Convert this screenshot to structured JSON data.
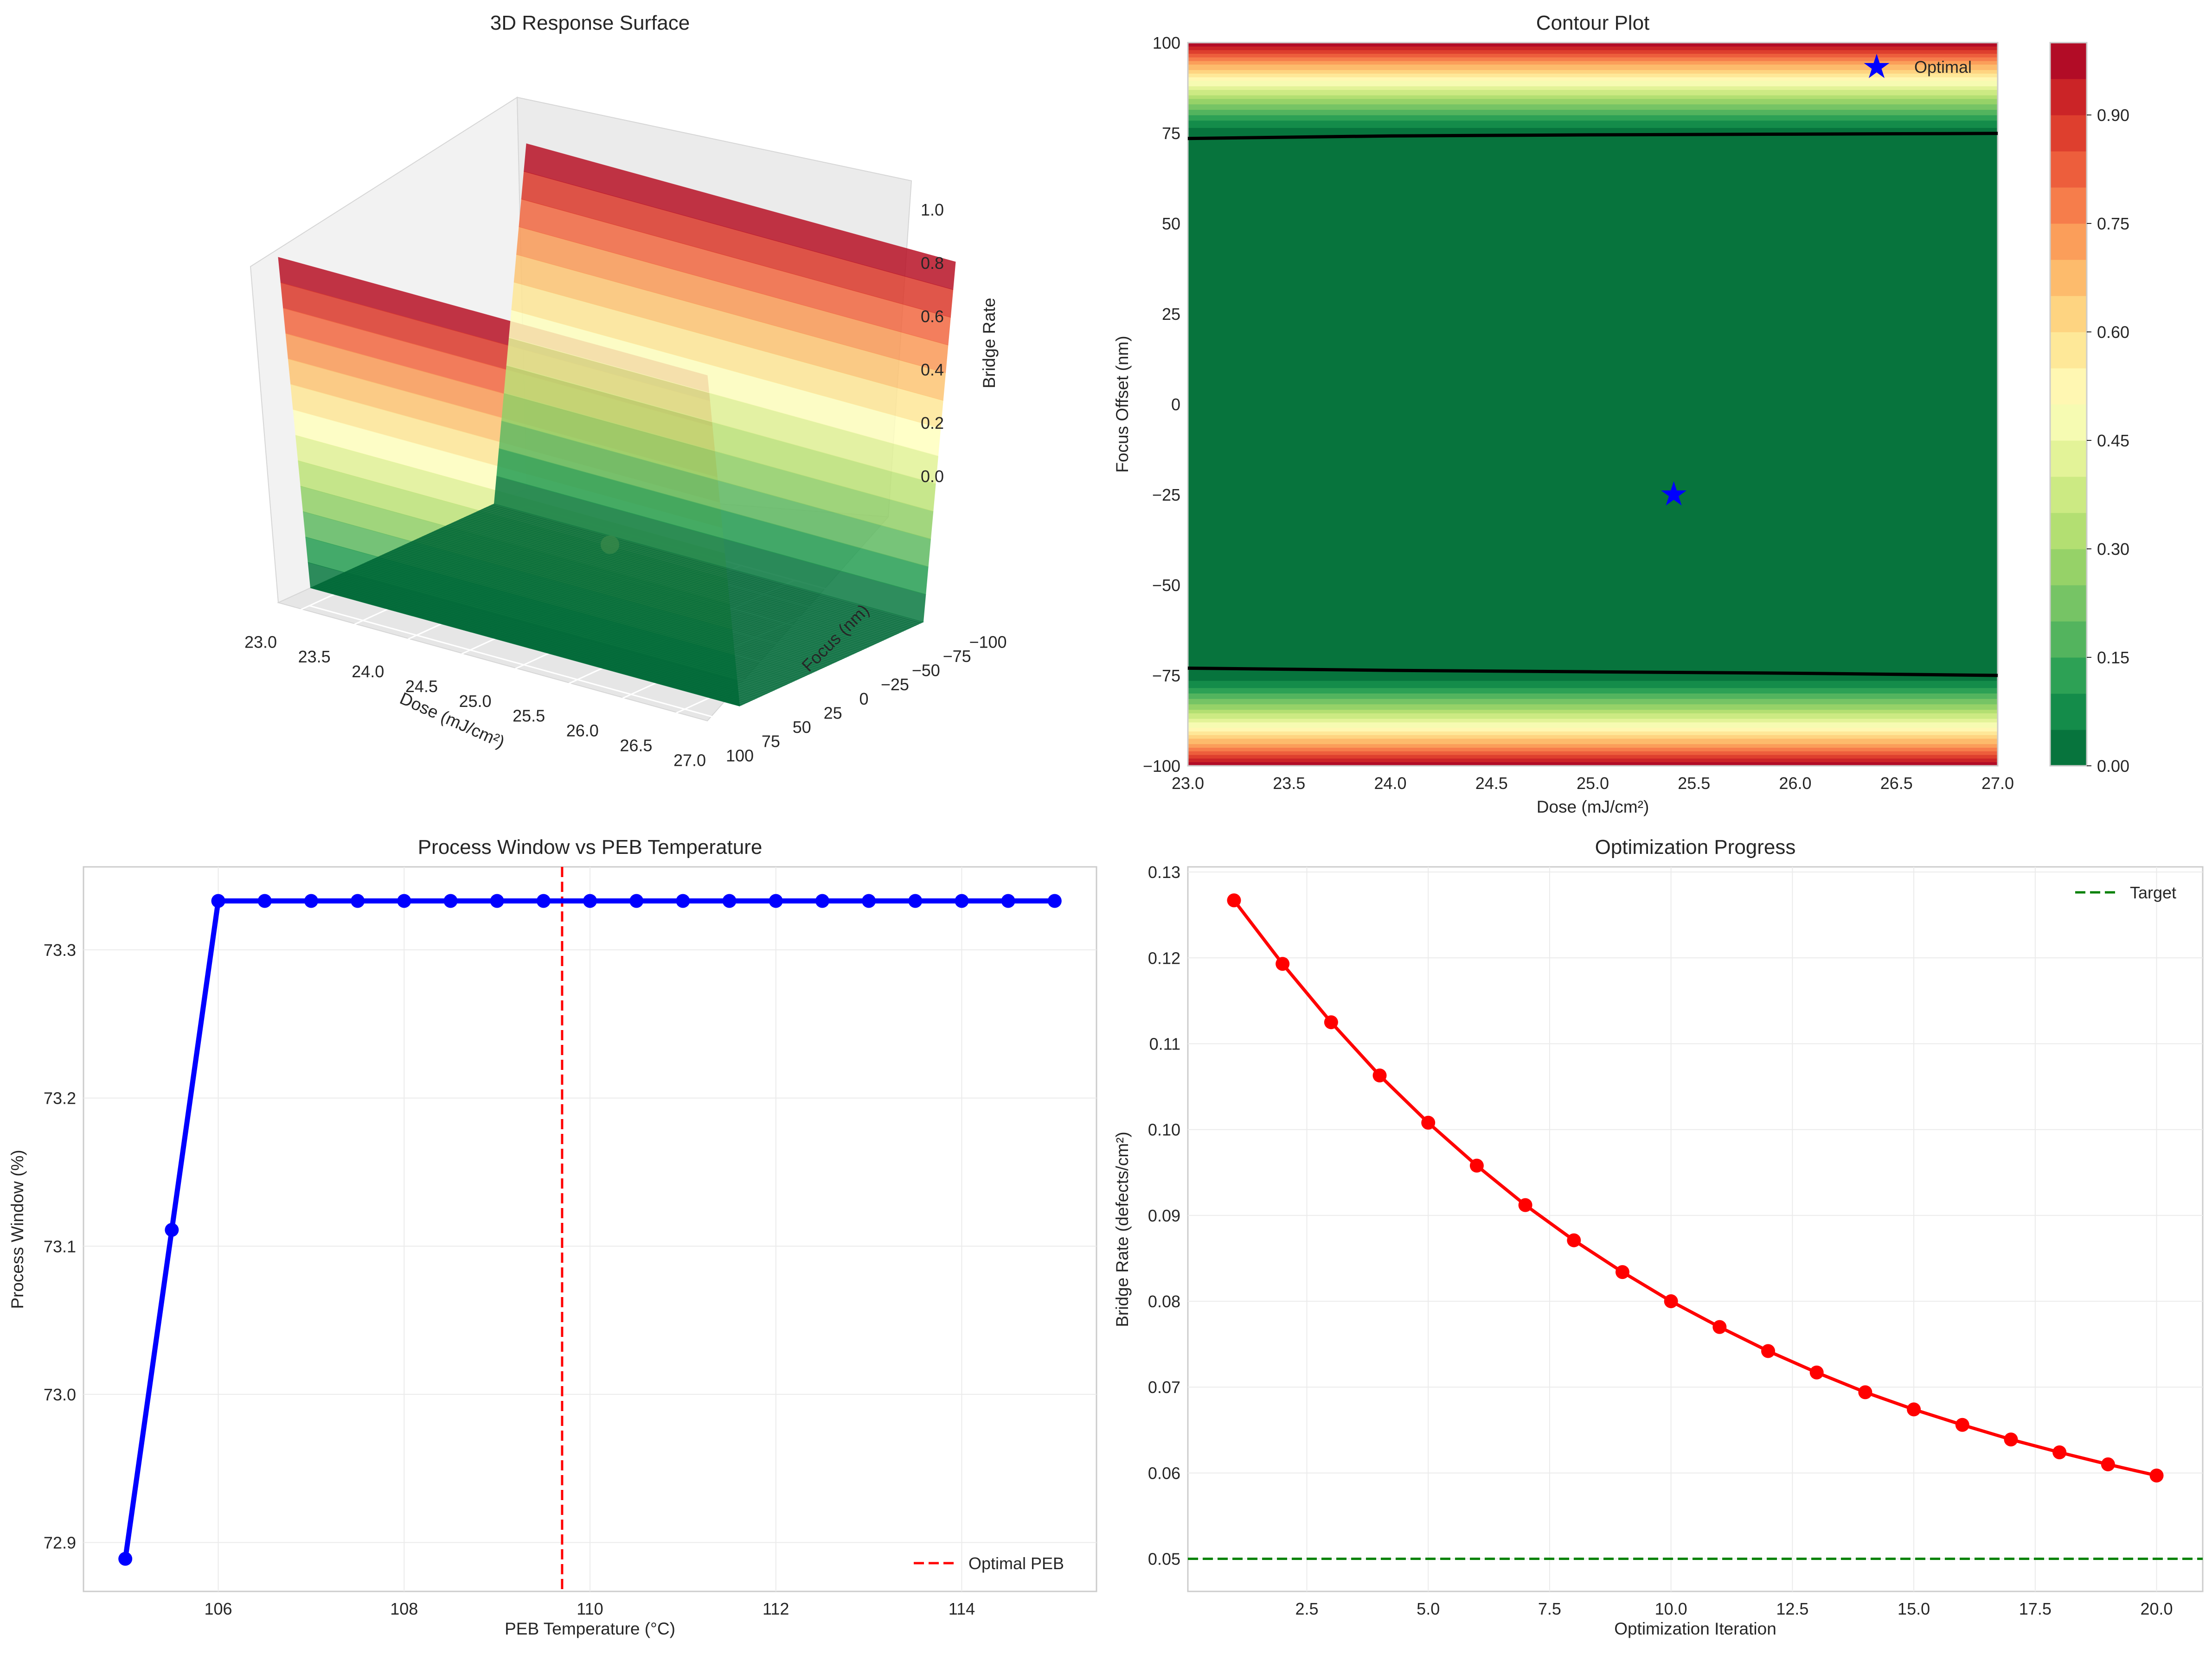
{
  "chart_data": [
    {
      "type": "surface3d",
      "title": "3D Response Surface",
      "xlabel": "Dose (mJ/cm²)",
      "ylabel": "Focus (nm)",
      "zlabel": "Bridge Rate",
      "x_ticks": [
        "23.0",
        "23.5",
        "24.0",
        "24.5",
        "25.0",
        "25.5",
        "26.0",
        "26.5",
        "27.0"
      ],
      "y_ticks": [
        "−100",
        "−75",
        "−50",
        "−25",
        "0",
        "25",
        "50",
        "75",
        "100"
      ],
      "z_ticks": [
        "0.0",
        "0.2",
        "0.4",
        "0.6",
        "0.8",
        "1.0"
      ],
      "xlim": [
        23,
        27
      ],
      "ylim": [
        -100,
        100
      ],
      "zlim": [
        -0.05,
        1.05
      ],
      "surface": {
        "description_rows_focus": [
          -100,
          -75,
          75,
          100
        ],
        "bridge_rate_at_focus_edges": 1.0,
        "bridge_rate_in_window": 0.0
      },
      "optimal_point": {
        "dose": 25.4,
        "focus": -25,
        "bridge_rate": 0.0
      },
      "colormap": "RdYlGn_r"
    },
    {
      "type": "contour",
      "title": "Contour Plot",
      "xlabel": "Dose (mJ/cm²)",
      "ylabel": "Focus Offset (nm)",
      "x_ticks": [
        "23.0",
        "23.5",
        "24.0",
        "24.5",
        "25.0",
        "25.5",
        "26.0",
        "26.5",
        "27.0"
      ],
      "y_ticks": [
        "−100",
        "−75",
        "−50",
        "−25",
        "0",
        "25",
        "50",
        "75",
        "100"
      ],
      "xlim": [
        23,
        27
      ],
      "ylim": [
        -100,
        100
      ],
      "colorbar_ticks": [
        "0.00",
        "0.15",
        "0.30",
        "0.45",
        "0.60",
        "0.75",
        "0.90"
      ],
      "colorbar_range": [
        0,
        1.0
      ],
      "levels": 20,
      "threshold_contour_upper": [
        [
          23.0,
          73.5
        ],
        [
          24.0,
          74.2
        ],
        [
          25.0,
          74.5
        ],
        [
          26.0,
          74.7
        ],
        [
          27.0,
          74.9
        ]
      ],
      "threshold_contour_lower": [
        [
          23.0,
          -73.0
        ],
        [
          24.0,
          -73.6
        ],
        [
          25.0,
          -74.0
        ],
        [
          26.0,
          -74.4
        ],
        [
          27.0,
          -75.0
        ]
      ],
      "optimal_point": {
        "dose": 25.4,
        "focus": -25
      },
      "legend": [
        {
          "label": "Optimal",
          "marker": "star",
          "color": "#0000ff"
        }
      ],
      "legend_position": "upper-right",
      "colormap": "RdYlGn_r"
    },
    {
      "type": "line",
      "title": "Process Window vs PEB Temperature",
      "xlabel": "PEB Temperature (°C)",
      "ylabel": "Process Window (%)",
      "x_ticks": [
        "106",
        "108",
        "110",
        "112",
        "114"
      ],
      "y_ticks": [
        "72.9",
        "73.0",
        "73.1",
        "73.2",
        "73.3"
      ],
      "xlim": [
        104.55,
        115.45
      ],
      "ylim": [
        72.867,
        73.356
      ],
      "series": [
        {
          "color": "#0000ff",
          "x": [
            105.0,
            105.5,
            106.0,
            106.5,
            107.0,
            107.5,
            108.0,
            108.5,
            109.0,
            109.5,
            110.0,
            110.5,
            111.0,
            111.5,
            112.0,
            112.5,
            113.0,
            113.5,
            114.0,
            114.5,
            115.0
          ],
          "y": [
            72.889,
            73.111,
            73.333,
            73.333,
            73.333,
            73.333,
            73.333,
            73.333,
            73.333,
            73.333,
            73.333,
            73.333,
            73.333,
            73.333,
            73.333,
            73.333,
            73.333,
            73.333,
            73.333,
            73.333,
            73.333
          ]
        }
      ],
      "vertical_line": {
        "x": 109.7,
        "label": "Optimal PEB",
        "color": "#ff0000",
        "style": "dashed"
      },
      "legend_position": "lower-right",
      "grid": true
    },
    {
      "type": "line",
      "title": "Optimization Progress",
      "xlabel": "Optimization Iteration",
      "ylabel": "Bridge Rate (defects/cm²)",
      "x_ticks": [
        "2.5",
        "5.0",
        "7.5",
        "10.0",
        "12.5",
        "15.0",
        "17.5",
        "20.0"
      ],
      "y_ticks": [
        "0.05",
        "0.06",
        "0.07",
        "0.08",
        "0.09",
        "0.10",
        "0.11",
        "0.12",
        "0.13"
      ],
      "xlim": [
        0.05,
        20.95
      ],
      "ylim": [
        0.0462,
        0.1306
      ],
      "series": [
        {
          "color": "#ff0000",
          "x": [
            1,
            2,
            3,
            4,
            5,
            6,
            7,
            8,
            9,
            10,
            11,
            12,
            13,
            14,
            15,
            16,
            17,
            18,
            19,
            20
          ],
          "y": [
            0.1267,
            0.1193,
            0.1125,
            0.1063,
            0.1008,
            0.0958,
            0.0912,
            0.0871,
            0.0834,
            0.08,
            0.077,
            0.0742,
            0.0717,
            0.0694,
            0.0674,
            0.0656,
            0.0639,
            0.0624,
            0.061,
            0.0597
          ]
        }
      ],
      "horizontal_line": {
        "y": 0.05,
        "label": "Target",
        "color": "#008000",
        "style": "dashed"
      },
      "legend_position": "upper-right",
      "grid": true
    }
  ]
}
